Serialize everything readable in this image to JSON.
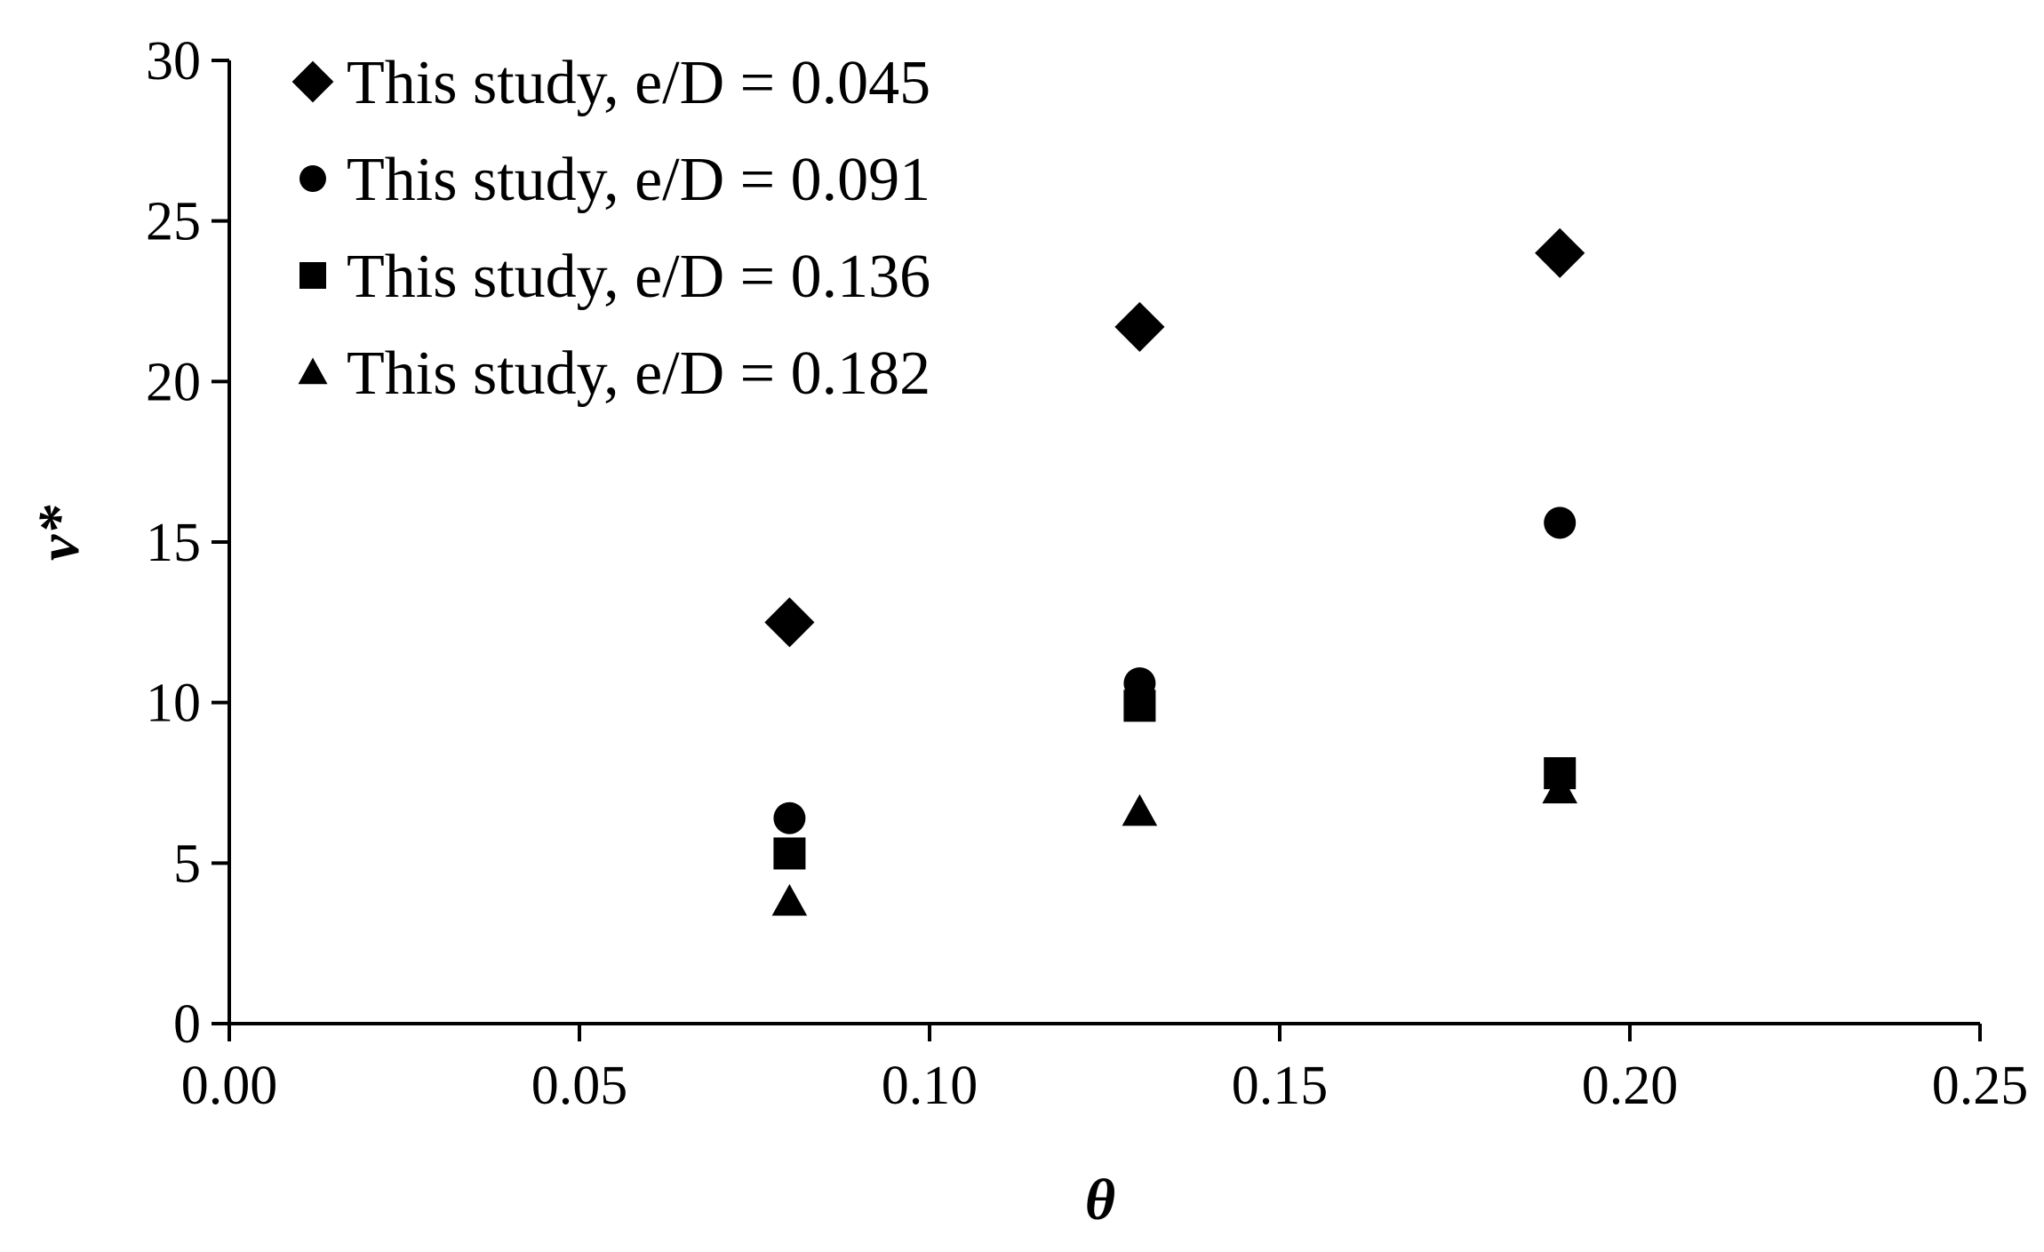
{
  "chart_data": {
    "type": "scatter",
    "title": "",
    "xlabel": "θ",
    "ylabel": "ν*",
    "xlim": [
      0,
      0.25
    ],
    "ylim": [
      0,
      30
    ],
    "x_ticks": [
      "0.00",
      "0.05",
      "0.10",
      "0.15",
      "0.20",
      "0.25"
    ],
    "y_ticks": [
      "0",
      "5",
      "10",
      "15",
      "20",
      "25",
      "30"
    ],
    "grid": false,
    "legend_position": "top-left",
    "series": [
      {
        "name": "This study, e/D = 0.045",
        "marker": "diamond",
        "color": "#000000",
        "points": [
          {
            "x": 0.08,
            "y": 12.5
          },
          {
            "x": 0.13,
            "y": 21.7
          },
          {
            "x": 0.19,
            "y": 24.0
          }
        ]
      },
      {
        "name": "This study, e/D = 0.091",
        "marker": "circle",
        "color": "#000000",
        "points": [
          {
            "x": 0.08,
            "y": 6.4
          },
          {
            "x": 0.13,
            "y": 10.6
          },
          {
            "x": 0.19,
            "y": 15.6
          }
        ]
      },
      {
        "name": "This study, e/D = 0.136",
        "marker": "square",
        "color": "#000000",
        "points": [
          {
            "x": 0.08,
            "y": 5.3
          },
          {
            "x": 0.13,
            "y": 9.9
          },
          {
            "x": 0.19,
            "y": 7.8
          }
        ]
      },
      {
        "name": "This study, e/D = 0.182",
        "marker": "triangle",
        "color": "#000000",
        "points": [
          {
            "x": 0.08,
            "y": 3.8
          },
          {
            "x": 0.13,
            "y": 6.6
          },
          {
            "x": 0.19,
            "y": 7.3
          }
        ]
      }
    ]
  }
}
